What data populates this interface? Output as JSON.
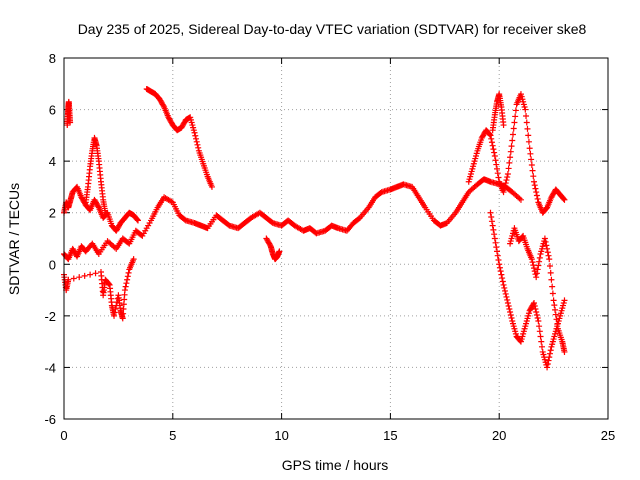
{
  "chart_data": {
    "type": "scatter",
    "title": "Day 235 of 2025, Sidereal Day-to-day VTEC variation (SDTVAR) for receiver ske8",
    "xlabel": "GPS time / hours",
    "ylabel": "SDTVAR / TECUs",
    "xlim": [
      0,
      25
    ],
    "ylim": [
      -6,
      8
    ],
    "xticks": [
      0,
      5,
      10,
      15,
      20,
      25
    ],
    "yticks": [
      -6,
      -4,
      -2,
      0,
      2,
      4,
      6,
      8
    ],
    "xtick_labels": [
      "0",
      "5",
      "10",
      "15",
      "20",
      "25"
    ],
    "ytick_labels": [
      "-6",
      "-4",
      "-2",
      "0",
      "2",
      "4",
      "6",
      "8"
    ],
    "grid": true,
    "marker": "+",
    "color": "#ff0000",
    "series": [
      {
        "name": "main-band",
        "x": [
          0.0,
          0.2,
          0.4,
          0.6,
          0.8,
          1.0,
          1.3,
          1.6,
          2.0,
          2.4,
          2.7,
          3.0,
          3.3,
          3.6,
          4.0,
          4.3,
          4.6,
          5.0,
          5.3,
          5.6,
          6.0,
          6.3,
          6.6,
          7.0,
          7.3,
          7.6,
          8.0,
          8.3,
          8.6,
          9.0,
          9.3,
          9.6,
          10.0,
          10.3,
          10.6,
          11.0,
          11.3,
          11.6,
          12.0,
          12.3,
          12.6,
          13.0,
          13.3,
          13.6,
          14.0,
          14.3,
          14.6,
          15.0,
          15.3,
          15.6,
          16.0,
          16.3,
          16.6,
          17.0,
          17.3,
          17.6,
          18.0,
          18.3,
          18.6,
          19.0,
          19.3,
          19.6,
          20.0,
          20.3,
          20.6,
          21.0
        ],
        "y": [
          0.4,
          0.2,
          0.6,
          0.3,
          0.7,
          0.5,
          0.8,
          0.4,
          0.9,
          0.6,
          1.0,
          0.8,
          1.3,
          1.1,
          1.7,
          2.2,
          2.6,
          2.4,
          1.9,
          1.7,
          1.6,
          1.5,
          1.4,
          1.9,
          1.7,
          1.5,
          1.4,
          1.6,
          1.8,
          2.0,
          1.8,
          1.6,
          1.5,
          1.7,
          1.5,
          1.3,
          1.4,
          1.2,
          1.3,
          1.5,
          1.4,
          1.3,
          1.6,
          1.8,
          2.2,
          2.6,
          2.8,
          2.9,
          3.0,
          3.1,
          3.0,
          2.6,
          2.2,
          1.7,
          1.5,
          1.6,
          2.0,
          2.4,
          2.8,
          3.1,
          3.3,
          3.2,
          3.1,
          3.0,
          2.8,
          2.5
        ]
      },
      {
        "name": "upper-early",
        "x": [
          0.0,
          0.1,
          0.2,
          0.3,
          0.4,
          0.6,
          0.8,
          1.0,
          1.2,
          1.4,
          1.6,
          1.8,
          2.0,
          2.2,
          2.4,
          2.6,
          2.8,
          3.0,
          3.2,
          3.4
        ],
        "y": [
          2.0,
          2.4,
          2.2,
          2.5,
          2.8,
          3.0,
          2.6,
          2.3,
          2.1,
          2.5,
          2.2,
          1.8,
          2.0,
          1.5,
          1.3,
          1.6,
          1.8,
          2.0,
          1.9,
          1.7
        ]
      },
      {
        "name": "spike-0p2",
        "x": [
          0.15,
          0.18,
          0.2,
          0.22,
          0.25,
          0.28
        ],
        "y": [
          5.4,
          5.8,
          6.1,
          6.3,
          5.9,
          5.5
        ]
      },
      {
        "name": "spike-1p3",
        "x": [
          1.0,
          1.1,
          1.2,
          1.3,
          1.4,
          1.5,
          1.6,
          1.7,
          1.8,
          1.9
        ],
        "y": [
          2.4,
          3.0,
          3.8,
          4.4,
          4.9,
          4.6,
          4.0,
          3.2,
          2.5,
          2.0
        ]
      },
      {
        "name": "dips-early",
        "x": [
          0.0,
          0.1,
          0.2,
          1.7,
          1.8,
          1.9,
          2.1,
          2.2,
          2.3,
          2.5,
          2.6,
          2.7,
          2.8,
          3.0,
          3.2
        ],
        "y": [
          -0.4,
          -1.0,
          -0.6,
          -0.3,
          -1.2,
          -0.6,
          -0.8,
          -1.6,
          -2.0,
          -1.2,
          -1.8,
          -2.1,
          -1.0,
          -0.2,
          0.2
        ]
      },
      {
        "name": "diagonal-4-7",
        "x": [
          3.8,
          4.0,
          4.2,
          4.4,
          4.6,
          4.8,
          5.0,
          5.2,
          5.4,
          5.6,
          5.8,
          6.0,
          6.2,
          6.4,
          6.6,
          6.8
        ],
        "y": [
          6.8,
          6.7,
          6.6,
          6.4,
          6.1,
          5.7,
          5.4,
          5.2,
          5.3,
          5.6,
          5.7,
          5.1,
          4.4,
          3.9,
          3.4,
          3.0
        ]
      },
      {
        "name": "dip-9p7",
        "x": [
          9.3,
          9.5,
          9.6,
          9.7,
          9.8,
          9.9
        ],
        "y": [
          1.0,
          0.7,
          0.4,
          0.2,
          0.3,
          0.5
        ]
      },
      {
        "name": "late-upper",
        "x": [
          18.6,
          18.8,
          19.0,
          19.2,
          19.4,
          19.6,
          19.8,
          20.0,
          20.2,
          20.4,
          20.6,
          20.8,
          21.0,
          21.2,
          21.4,
          21.6,
          21.8,
          22.0,
          22.2,
          22.4,
          22.6,
          22.8,
          23.0
        ],
        "y": [
          3.2,
          3.8,
          4.4,
          4.9,
          5.2,
          5.0,
          4.2,
          3.2,
          2.8,
          3.5,
          4.8,
          6.2,
          6.6,
          6.0,
          4.5,
          3.2,
          2.4,
          2.0,
          2.2,
          2.6,
          2.9,
          2.7,
          2.5
        ]
      },
      {
        "name": "late-spike-20",
        "x": [
          19.7,
          19.8,
          19.9,
          20.0,
          20.1,
          20.2
        ],
        "y": [
          5.2,
          5.8,
          6.3,
          6.6,
          6.1,
          5.4
        ]
      },
      {
        "name": "late-lower",
        "x": [
          19.6,
          19.8,
          20.0,
          20.2,
          20.4,
          20.6,
          20.8,
          21.0,
          21.2,
          21.4,
          21.6,
          21.8,
          22.0,
          22.2,
          22.4,
          22.6,
          22.8,
          23.0
        ],
        "y": [
          2.0,
          1.0,
          0.0,
          -0.8,
          -1.5,
          -2.2,
          -2.8,
          -3.0,
          -2.4,
          -1.8,
          -1.5,
          -2.2,
          -3.4,
          -4.0,
          -3.2,
          -2.6,
          -2.0,
          -1.4
        ]
      },
      {
        "name": "late-scatter",
        "x": [
          20.5,
          20.7,
          20.9,
          21.1,
          21.3,
          21.5,
          21.7,
          21.9,
          22.1,
          22.3,
          22.5,
          22.7,
          22.9,
          23.0
        ],
        "y": [
          0.8,
          1.4,
          0.9,
          1.1,
          0.6,
          0.2,
          -0.5,
          0.4,
          1.0,
          0.2,
          -1.4,
          -2.5,
          -3.0,
          -3.4
        ]
      }
    ]
  }
}
